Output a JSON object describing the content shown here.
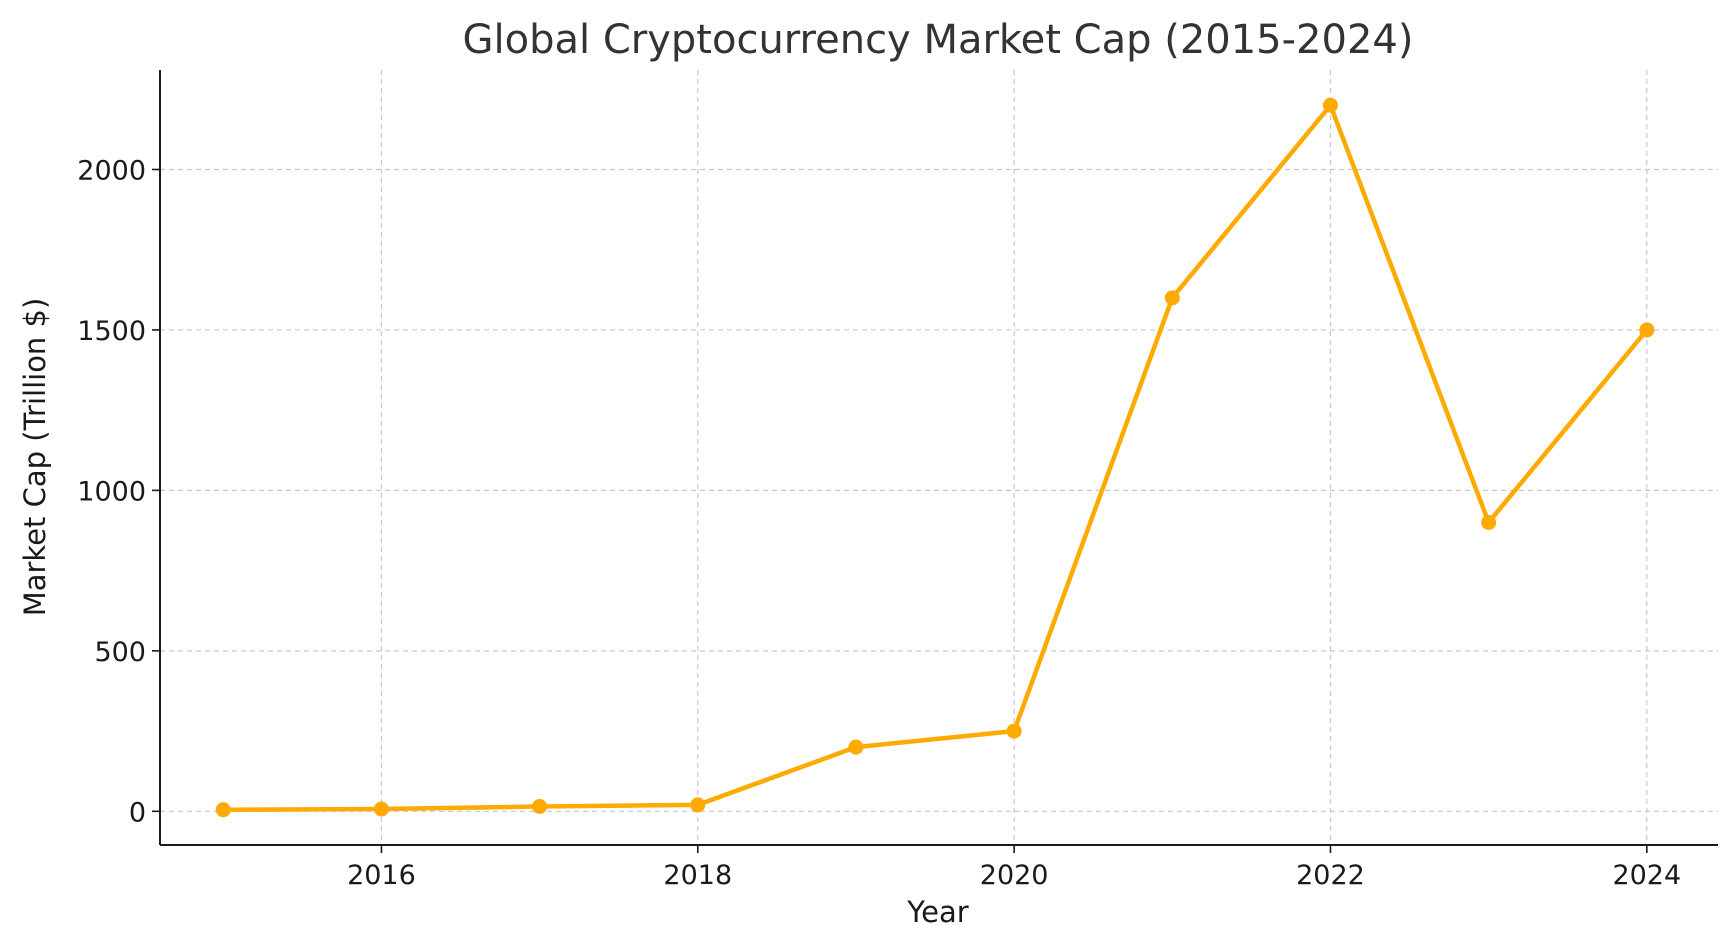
{
  "chart_data": {
    "type": "line",
    "title": "Global Cryptocurrency Market Cap (2015-2024)",
    "xlabel": "Year",
    "ylabel": "Market Cap (Trillion $)",
    "x": [
      2015,
      2016,
      2017,
      2018,
      2019,
      2020,
      2021,
      2022,
      2023,
      2024
    ],
    "series": [
      {
        "name": "Market Cap",
        "values": [
          5,
          7,
          15,
          20,
          200,
          250,
          1600,
          2200,
          900,
          1500
        ],
        "color": "#FFAA00"
      }
    ],
    "xlim": [
      2014.6,
      2024.45
    ],
    "ylim": [
      -105,
      2310
    ],
    "x_ticks": [
      2016,
      2018,
      2020,
      2022,
      2024
    ],
    "x_tick_labels": [
      "2016",
      "2018",
      "2020",
      "2022",
      "2024"
    ],
    "y_ticks": [
      0,
      500,
      1000,
      1500,
      2000
    ],
    "y_tick_labels": [
      "0",
      "500",
      "1000",
      "1500",
      "2000"
    ],
    "grid": true,
    "legend": "none"
  }
}
